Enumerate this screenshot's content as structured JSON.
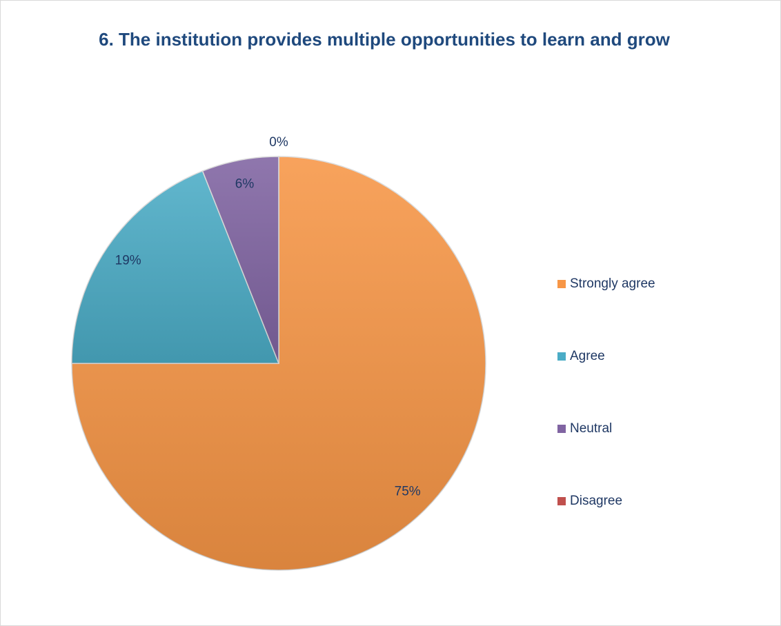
{
  "chart_data": {
    "type": "pie",
    "title": "6. The institution provides multiple opportunities to learn and grow",
    "categories": [
      "Strongly agree",
      "Agree",
      "Neutral",
      "Disagree"
    ],
    "values": [
      75,
      19,
      6,
      0
    ],
    "value_labels": [
      "75%",
      "19%",
      "6%",
      "0%"
    ],
    "colors": [
      "#f79646",
      "#4bacc6",
      "#8064a2",
      "#c0504d"
    ],
    "legend": "right"
  }
}
